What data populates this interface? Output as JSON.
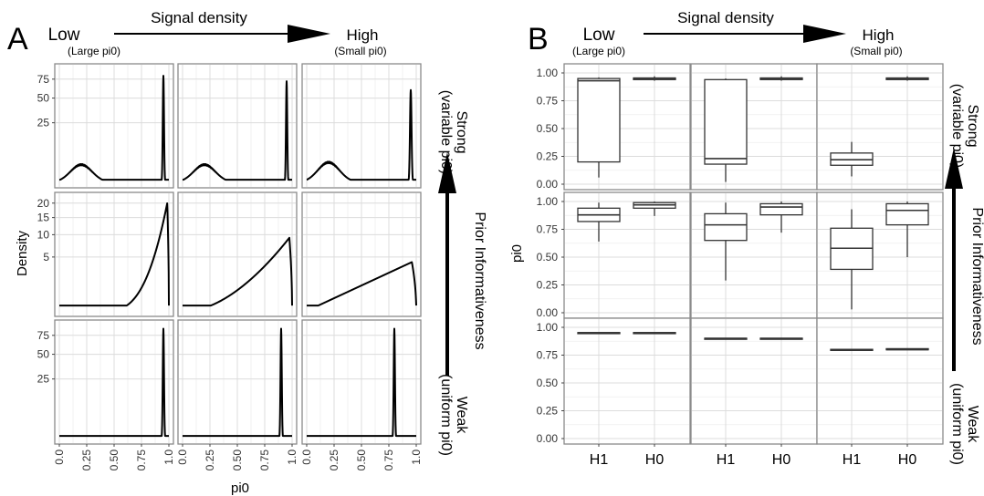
{
  "chart_data": [
    {
      "panel_letter": "A",
      "type": "area",
      "xlabel": "pi0",
      "ylabel": "Density",
      "header": {
        "left": "Low",
        "left_sub": "(Large pi0)",
        "middle": "Signal density",
        "right": "High",
        "right_sub": "(Small pi0)"
      },
      "side": {
        "top": "Strong",
        "top_sub": "(variable pi0)",
        "middle": "Prior Informativeness",
        "bottom": "Weak",
        "bottom_sub": "(uniform pi0)"
      },
      "x_ticks": [
        "0.0",
        "0.25",
        "0.50",
        "0.75",
        "1.0"
      ],
      "xlim": [
        0,
        1
      ],
      "y_scale": "sqrt",
      "rows": [
        {
          "y_ticks": [
            25,
            50,
            75
          ],
          "ylim": [
            0,
            90
          ]
        },
        {
          "y_ticks": [
            5,
            10,
            15,
            20
          ],
          "ylim": [
            0,
            22
          ]
        },
        {
          "y_ticks": [
            25,
            50,
            75
          ],
          "ylim": [
            0,
            90
          ]
        }
      ],
      "panels": [
        [
          {
            "bumps": [
              {
                "center": 0.2,
                "height": 2.2,
                "width": 0.07
              }
            ],
            "spikes": [
              {
                "center": 0.95,
                "height": 80,
                "width": 0.004
              }
            ]
          },
          {
            "bumps": [
              {
                "center": 0.2,
                "height": 2.2,
                "width": 0.07
              }
            ],
            "spikes": [
              {
                "center": 0.95,
                "height": 72,
                "width": 0.004
              }
            ]
          },
          {
            "bumps": [
              {
                "center": 0.2,
                "height": 2.8,
                "width": 0.07
              }
            ],
            "spikes": [
              {
                "center": 0.95,
                "height": 60,
                "width": 0.005
              }
            ]
          }
        ],
        [
          {
            "ramp": {
              "start": 0.4,
              "end": 0.985,
              "peak": 20,
              "power": 6
            }
          },
          {
            "ramp": {
              "start": 0.05,
              "end": 0.975,
              "peak": 9.2,
              "power": 3.5
            }
          },
          {
            "ramp": {
              "start": 0.0,
              "end": 0.96,
              "peak": 4.1,
              "power": 2
            }
          }
        ],
        [
          {
            "spikes": [
              {
                "center": 0.95,
                "height": 85,
                "width": 0.004
              }
            ]
          },
          {
            "spikes": [
              {
                "center": 0.9,
                "height": 85,
                "width": 0.004
              }
            ]
          },
          {
            "spikes": [
              {
                "center": 0.8,
                "height": 85,
                "width": 0.004
              }
            ]
          }
        ]
      ]
    },
    {
      "panel_letter": "B",
      "type": "box",
      "ylabel": "pi0",
      "header": {
        "left": "Low",
        "left_sub": "(Large pi0)",
        "middle": "Signal density",
        "right": "High",
        "right_sub": "(Small pi0)"
      },
      "side": {
        "top": "Strong",
        "top_sub": "(variable pi0)",
        "middle": "Prior Informativeness",
        "bottom": "Weak",
        "bottom_sub": "(uniform pi0)"
      },
      "categories": [
        "H1",
        "H0"
      ],
      "y_ticks": [
        "0.00",
        "0.25",
        "0.50",
        "0.75",
        "1.00"
      ],
      "ylim": [
        0,
        1
      ],
      "panels": [
        [
          {
            "H1": {
              "min": 0.06,
              "q1": 0.2,
              "median": 0.93,
              "q3": 0.95,
              "max": 0.96
            },
            "H0": {
              "min": 0.93,
              "q1": 0.94,
              "median": 0.95,
              "q3": 0.955,
              "max": 0.97
            }
          },
          {
            "H1": {
              "min": 0.02,
              "q1": 0.18,
              "median": 0.23,
              "q3": 0.94,
              "max": 0.95
            },
            "H0": {
              "min": 0.93,
              "q1": 0.94,
              "median": 0.95,
              "q3": 0.955,
              "max": 0.97
            }
          },
          {
            "H1": {
              "min": 0.07,
              "q1": 0.17,
              "median": 0.22,
              "q3": 0.28,
              "max": 0.38
            },
            "H0": {
              "min": 0.93,
              "q1": 0.94,
              "median": 0.95,
              "q3": 0.955,
              "max": 0.97
            }
          }
        ],
        [
          {
            "H1": {
              "min": 0.64,
              "q1": 0.82,
              "median": 0.88,
              "q3": 0.94,
              "max": 0.99
            },
            "H0": {
              "min": 0.87,
              "q1": 0.94,
              "median": 0.97,
              "q3": 0.99,
              "max": 1.0
            }
          },
          {
            "H1": {
              "min": 0.29,
              "q1": 0.65,
              "median": 0.79,
              "q3": 0.89,
              "max": 0.99
            },
            "H0": {
              "min": 0.72,
              "q1": 0.88,
              "median": 0.95,
              "q3": 0.98,
              "max": 1.0
            }
          },
          {
            "H1": {
              "min": 0.03,
              "q1": 0.39,
              "median": 0.58,
              "q3": 0.76,
              "max": 0.93
            },
            "H0": {
              "min": 0.5,
              "q1": 0.79,
              "median": 0.92,
              "q3": 0.98,
              "max": 1.0
            }
          }
        ],
        [
          {
            "H1": {
              "min": 0.945,
              "q1": 0.947,
              "median": 0.95,
              "q3": 0.953,
              "max": 0.955
            },
            "H0": {
              "min": 0.945,
              "q1": 0.947,
              "median": 0.95,
              "q3": 0.953,
              "max": 0.955
            }
          },
          {
            "H1": {
              "min": 0.895,
              "q1": 0.898,
              "median": 0.9,
              "q3": 0.902,
              "max": 0.905
            },
            "H0": {
              "min": 0.895,
              "q1": 0.898,
              "median": 0.9,
              "q3": 0.902,
              "max": 0.905
            }
          },
          {
            "H1": {
              "min": 0.795,
              "q1": 0.798,
              "median": 0.8,
              "q3": 0.802,
              "max": 0.805
            },
            "H0": {
              "min": 0.795,
              "q1": 0.798,
              "median": 0.8,
              "q3": 0.808,
              "max": 0.812
            }
          }
        ]
      ]
    }
  ]
}
